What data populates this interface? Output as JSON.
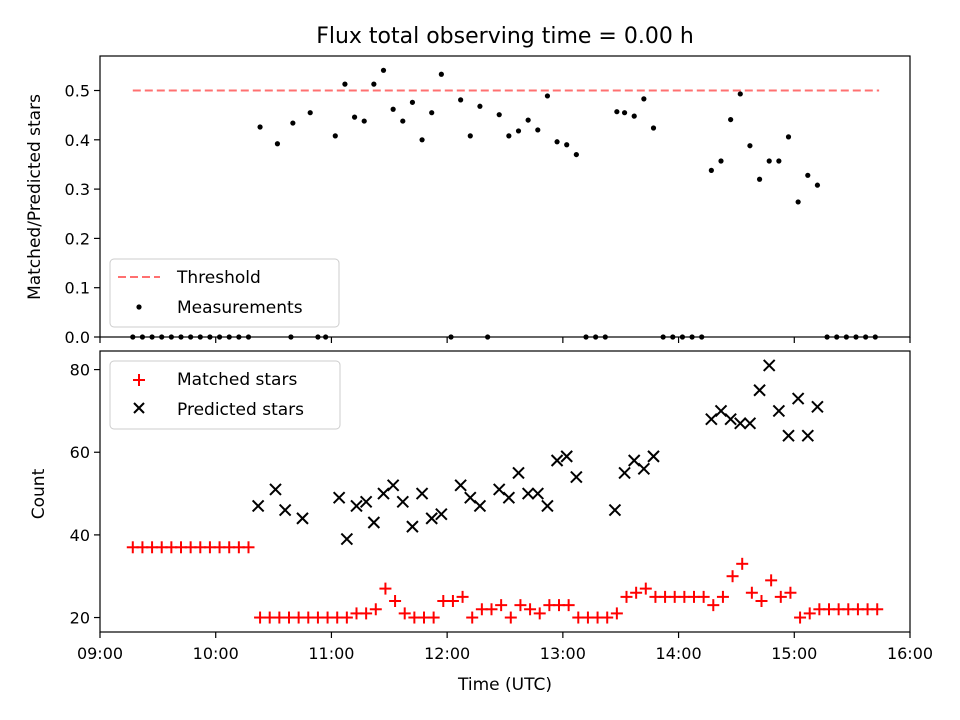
{
  "chart_data": [
    {
      "type": "scatter",
      "title": "Flux total observing time = 0.00 h",
      "xlabel": "",
      "ylabel": "Matched/Predicted stars",
      "xlim": [
        "09:00",
        "16:00"
      ],
      "ylim": [
        0.0,
        0.57
      ],
      "yticks": [
        "0.0",
        "0.1",
        "0.2",
        "0.3",
        "0.4",
        "0.5"
      ],
      "legend_position": "lower-left",
      "grid": false,
      "threshold": {
        "name": "Threshold",
        "value": 0.5,
        "x_start": "09:17",
        "x_end": "15:44",
        "color": "#ff7070",
        "style": "dashed"
      },
      "series": [
        {
          "name": "Measurements",
          "color": "#000000",
          "marker": "dot",
          "points": [
            [
              "09:17",
              0.0
            ],
            [
              "09:22",
              0.0
            ],
            [
              "09:27",
              0.0
            ],
            [
              "09:32",
              0.0
            ],
            [
              "09:37",
              0.0
            ],
            [
              "09:42",
              0.0
            ],
            [
              "09:47",
              0.0
            ],
            [
              "09:52",
              0.0
            ],
            [
              "09:57",
              0.0
            ],
            [
              "10:02",
              0.0
            ],
            [
              "10:07",
              0.0
            ],
            [
              "10:12",
              0.0
            ],
            [
              "10:17",
              0.0
            ],
            [
              "10:23",
              0.426
            ],
            [
              "10:32",
              0.392
            ],
            [
              "10:39",
              0.0
            ],
            [
              "10:40",
              0.434
            ],
            [
              "10:49",
              0.455
            ],
            [
              "10:53",
              0.0
            ],
            [
              "10:57",
              0.0
            ],
            [
              "11:02",
              0.408
            ],
            [
              "11:07",
              0.513
            ],
            [
              "11:12",
              0.446
            ],
            [
              "11:17",
              0.438
            ],
            [
              "11:22",
              0.513
            ],
            [
              "11:27",
              0.541
            ],
            [
              "11:32",
              0.462
            ],
            [
              "11:37",
              0.438
            ],
            [
              "11:42",
              0.476
            ],
            [
              "11:47",
              0.4
            ],
            [
              "11:52",
              0.455
            ],
            [
              "11:57",
              0.533
            ],
            [
              "12:02",
              0.0
            ],
            [
              "12:07",
              0.481
            ],
            [
              "12:12",
              0.408
            ],
            [
              "12:17",
              0.468
            ],
            [
              "12:21",
              0.0
            ],
            [
              "12:27",
              0.451
            ],
            [
              "12:32",
              0.408
            ],
            [
              "12:37",
              0.418
            ],
            [
              "12:42",
              0.44
            ],
            [
              "12:47",
              0.42
            ],
            [
              "12:52",
              0.489
            ],
            [
              "12:57",
              0.396
            ],
            [
              "13:02",
              0.39
            ],
            [
              "13:07",
              0.37
            ],
            [
              "13:12",
              0.0
            ],
            [
              "13:17",
              0.0
            ],
            [
              "13:22",
              0.0
            ],
            [
              "13:28",
              0.457
            ],
            [
              "13:32",
              0.455
            ],
            [
              "13:37",
              0.448
            ],
            [
              "13:42",
              0.483
            ],
            [
              "13:47",
              0.424
            ],
            [
              "13:52",
              0.0
            ],
            [
              "13:57",
              0.0
            ],
            [
              "14:02",
              0.0
            ],
            [
              "14:07",
              0.0
            ],
            [
              "14:12",
              0.0
            ],
            [
              "14:17",
              0.338
            ],
            [
              "14:22",
              0.357
            ],
            [
              "14:27",
              0.441
            ],
            [
              "14:32",
              0.493
            ],
            [
              "14:37",
              0.388
            ],
            [
              "14:42",
              0.32
            ],
            [
              "14:47",
              0.357
            ],
            [
              "14:52",
              0.357
            ],
            [
              "14:57",
              0.406
            ],
            [
              "15:02",
              0.274
            ],
            [
              "15:07",
              0.328
            ],
            [
              "15:12",
              0.308
            ],
            [
              "15:17",
              0.0
            ],
            [
              "15:22",
              0.0
            ],
            [
              "15:27",
              0.0
            ],
            [
              "15:32",
              0.0
            ],
            [
              "15:37",
              0.0
            ],
            [
              "15:42",
              0.0
            ]
          ]
        }
      ]
    },
    {
      "type": "scatter",
      "title": "",
      "xlabel": "Time (UTC)",
      "ylabel": "Count",
      "xlim": [
        "09:00",
        "16:00"
      ],
      "ylim": [
        16.5,
        84.5
      ],
      "xticks": [
        "09:00",
        "10:00",
        "11:00",
        "12:00",
        "13:00",
        "14:00",
        "15:00",
        "16:00"
      ],
      "yticks": [
        "20",
        "40",
        "60",
        "80"
      ],
      "legend_position": "upper-left",
      "grid": false,
      "series": [
        {
          "name": "Matched stars",
          "color": "#ff0000",
          "marker": "plus",
          "points": [
            [
              "09:17",
              37
            ],
            [
              "09:22",
              37
            ],
            [
              "09:27",
              37
            ],
            [
              "09:32",
              37
            ],
            [
              "09:37",
              37
            ],
            [
              "09:42",
              37
            ],
            [
              "09:47",
              37
            ],
            [
              "09:52",
              37
            ],
            [
              "09:57",
              37
            ],
            [
              "10:02",
              37
            ],
            [
              "10:07",
              37
            ],
            [
              "10:12",
              37
            ],
            [
              "10:17",
              37
            ],
            [
              "10:23",
              20
            ],
            [
              "10:28",
              20
            ],
            [
              "10:33",
              20
            ],
            [
              "10:38",
              20
            ],
            [
              "10:43",
              20
            ],
            [
              "10:48",
              20
            ],
            [
              "10:53",
              20
            ],
            [
              "10:58",
              20
            ],
            [
              "11:03",
              20
            ],
            [
              "11:08",
              20
            ],
            [
              "11:13",
              21
            ],
            [
              "11:18",
              21
            ],
            [
              "11:23",
              22
            ],
            [
              "11:28",
              27
            ],
            [
              "11:33",
              24
            ],
            [
              "11:38",
              21
            ],
            [
              "11:43",
              20
            ],
            [
              "11:48",
              20
            ],
            [
              "11:53",
              20
            ],
            [
              "11:58",
              24
            ],
            [
              "12:03",
              24
            ],
            [
              "12:08",
              25
            ],
            [
              "12:13",
              20
            ],
            [
              "12:18",
              22
            ],
            [
              "12:23",
              22
            ],
            [
              "12:28",
              23
            ],
            [
              "12:33",
              20
            ],
            [
              "12:38",
              23
            ],
            [
              "12:43",
              22
            ],
            [
              "12:48",
              21
            ],
            [
              "12:53",
              23
            ],
            [
              "12:58",
              23
            ],
            [
              "13:03",
              23
            ],
            [
              "13:08",
              20
            ],
            [
              "13:13",
              20
            ],
            [
              "13:18",
              20
            ],
            [
              "13:23",
              20
            ],
            [
              "13:28",
              21
            ],
            [
              "13:33",
              25
            ],
            [
              "13:38",
              26
            ],
            [
              "13:43",
              27
            ],
            [
              "13:48",
              25
            ],
            [
              "13:53",
              25
            ],
            [
              "13:58",
              25
            ],
            [
              "14:03",
              25
            ],
            [
              "14:08",
              25
            ],
            [
              "14:13",
              25
            ],
            [
              "14:18",
              23
            ],
            [
              "14:23",
              25
            ],
            [
              "14:28",
              30
            ],
            [
              "14:33",
              33
            ],
            [
              "14:38",
              26
            ],
            [
              "14:43",
              24
            ],
            [
              "14:48",
              29
            ],
            [
              "14:53",
              25
            ],
            [
              "14:58",
              26
            ],
            [
              "15:03",
              20
            ],
            [
              "15:08",
              21
            ],
            [
              "15:13",
              22
            ],
            [
              "15:18",
              22
            ],
            [
              "15:23",
              22
            ],
            [
              "15:28",
              22
            ],
            [
              "15:33",
              22
            ],
            [
              "15:38",
              22
            ],
            [
              "15:43",
              22
            ]
          ]
        },
        {
          "name": "Predicted stars",
          "color": "#000000",
          "marker": "x",
          "points": [
            [
              "10:22",
              47
            ],
            [
              "10:31",
              51
            ],
            [
              "10:36",
              46
            ],
            [
              "10:45",
              44
            ],
            [
              "11:04",
              49
            ],
            [
              "11:08",
              39
            ],
            [
              "11:13",
              47
            ],
            [
              "11:18",
              48
            ],
            [
              "11:22",
              43
            ],
            [
              "11:27",
              50
            ],
            [
              "11:32",
              52
            ],
            [
              "11:37",
              48
            ],
            [
              "11:42",
              42
            ],
            [
              "11:47",
              50
            ],
            [
              "11:52",
              44
            ],
            [
              "11:57",
              45
            ],
            [
              "12:07",
              52
            ],
            [
              "12:12",
              49
            ],
            [
              "12:17",
              47
            ],
            [
              "12:27",
              51
            ],
            [
              "12:32",
              49
            ],
            [
              "12:37",
              55
            ],
            [
              "12:42",
              50
            ],
            [
              "12:47",
              50
            ],
            [
              "12:52",
              47
            ],
            [
              "12:57",
              58
            ],
            [
              "13:02",
              59
            ],
            [
              "13:07",
              54
            ],
            [
              "13:27",
              46
            ],
            [
              "13:32",
              55
            ],
            [
              "13:37",
              58
            ],
            [
              "13:42",
              56
            ],
            [
              "13:47",
              59
            ],
            [
              "14:17",
              68
            ],
            [
              "14:22",
              70
            ],
            [
              "14:27",
              68
            ],
            [
              "14:32",
              67
            ],
            [
              "14:37",
              67
            ],
            [
              "14:42",
              75
            ],
            [
              "14:47",
              81
            ],
            [
              "14:52",
              70
            ],
            [
              "14:57",
              64
            ],
            [
              "15:02",
              73
            ],
            [
              "15:07",
              64
            ],
            [
              "15:12",
              71
            ]
          ]
        }
      ]
    }
  ]
}
